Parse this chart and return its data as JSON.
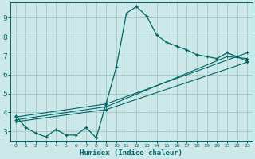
{
  "xlabel": "Humidex (Indice chaleur)",
  "bg_color": "#cce8e8",
  "grid_color": "#aacccc",
  "line_color": "#006666",
  "xlim": [
    -0.5,
    23.5
  ],
  "ylim": [
    2.5,
    9.8
  ],
  "xticks": [
    0,
    1,
    2,
    3,
    4,
    5,
    6,
    7,
    8,
    9,
    10,
    11,
    12,
    13,
    14,
    15,
    16,
    17,
    18,
    19,
    20,
    21,
    22,
    23
  ],
  "yticks": [
    3,
    4,
    5,
    6,
    7,
    8,
    9
  ],
  "line1_x": [
    0,
    1,
    2,
    3,
    4,
    5,
    6,
    7,
    8,
    9,
    10,
    11,
    12,
    13,
    14,
    15,
    16,
    17,
    18,
    19,
    20,
    21,
    22,
    23
  ],
  "line1_y": [
    3.8,
    3.2,
    2.9,
    2.7,
    3.1,
    2.8,
    2.8,
    3.2,
    2.65,
    4.5,
    6.4,
    9.25,
    9.6,
    9.1,
    8.1,
    7.7,
    7.5,
    7.3,
    7.05,
    6.95,
    6.85,
    7.15,
    6.95,
    6.7
  ],
  "line2_x": [
    0,
    9,
    23
  ],
  "line2_y": [
    3.75,
    4.45,
    7.15
  ],
  "line3_x": [
    0,
    9,
    21,
    23
  ],
  "line3_y": [
    3.6,
    4.3,
    6.95,
    6.85
  ],
  "line4_x": [
    0,
    9,
    23
  ],
  "line4_y": [
    3.5,
    4.15,
    6.65
  ]
}
